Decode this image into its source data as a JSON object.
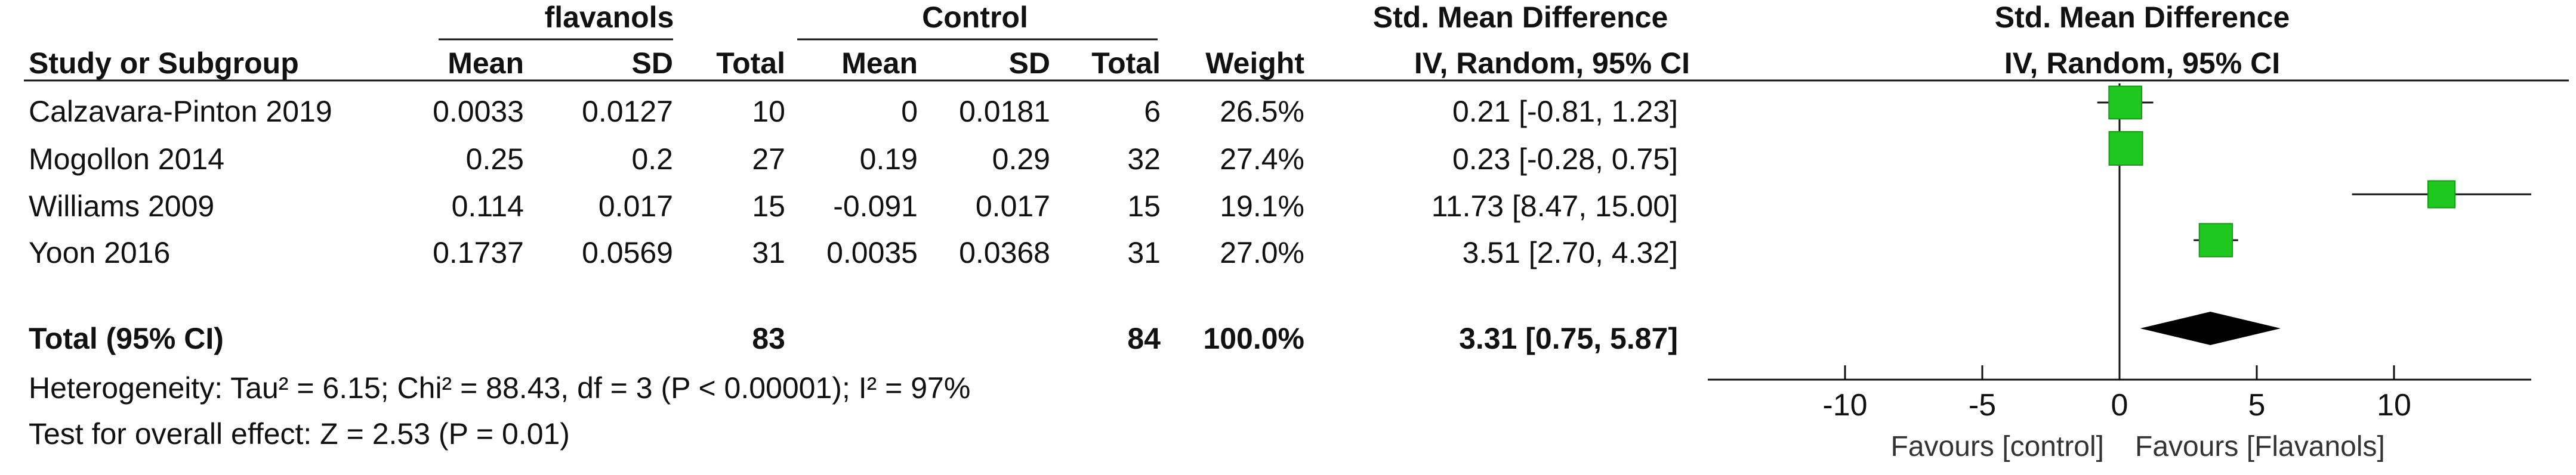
{
  "table": {
    "group1_title": "flavanols",
    "group2_title": "Control",
    "effect_title": "Std. Mean Difference",
    "effect_subtitle": "IV, Random, 95% CI",
    "plot_title": "Std. Mean Difference",
    "plot_subtitle": "IV, Random, 95% CI",
    "columns": [
      "Study or Subgroup",
      "Mean",
      "SD",
      "Total",
      "Mean",
      "SD",
      "Total",
      "Weight",
      "IV, Random, 95% CI"
    ],
    "rows": [
      {
        "study": "Calzavara-Pinton 2019",
        "m1": "0.0033",
        "sd1": "0.0127",
        "n1": "10",
        "m2": "0",
        "sd2": "0.0181",
        "n2": "6",
        "weight": "26.5%",
        "ci": "0.21 [-0.81, 1.23]"
      },
      {
        "study": "Mogollon 2014",
        "m1": "0.25",
        "sd1": "0.2",
        "n1": "27",
        "m2": "0.19",
        "sd2": "0.29",
        "n2": "32",
        "weight": "27.4%",
        "ci": "0.23 [-0.28, 0.75]"
      },
      {
        "study": "Williams 2009",
        "m1": "0.114",
        "sd1": "0.017",
        "n1": "15",
        "m2": "-0.091",
        "sd2": "0.017",
        "n2": "15",
        "weight": "19.1%",
        "ci": "11.73 [8.47, 15.00]"
      },
      {
        "study": "Yoon 2016",
        "m1": "0.1737",
        "sd1": "0.0569",
        "n1": "31",
        "m2": "0.0035",
        "sd2": "0.0368",
        "n2": "31",
        "weight": "27.0%",
        "ci": "3.51 [2.70, 4.32]"
      }
    ],
    "total": {
      "label": "Total (95% CI)",
      "n1": "83",
      "n2": "84",
      "weight": "100.0%",
      "ci": "3.31 [0.75, 5.87]"
    },
    "heterogeneity": "Heterogeneity: Tau² = 6.15; Chi² = 88.43, df = 3 (P < 0.00001); I² = 97%",
    "overall": "Test for overall effect: Z = 2.53 (P = 0.01)"
  },
  "chart_data": {
    "type": "forest",
    "title": "Std. Mean Difference",
    "subtitle": "IV, Random, 95% CI",
    "xlim": [
      -15,
      15
    ],
    "xticks": [
      -10,
      -5,
      0,
      5,
      10
    ],
    "xtick_labels": [
      "-10",
      "-5",
      "0",
      "5",
      "10"
    ],
    "favours_left": "Favours [control]",
    "favours_right": "Favours [Flavanols]",
    "studies": [
      {
        "name": "Calzavara-Pinton 2019",
        "estimate": 0.21,
        "lower": -0.81,
        "upper": 1.23,
        "weight": 26.5
      },
      {
        "name": "Mogollon 2014",
        "estimate": 0.23,
        "lower": -0.28,
        "upper": 0.75,
        "weight": 27.4
      },
      {
        "name": "Williams 2009",
        "estimate": 11.73,
        "lower": 8.47,
        "upper": 15.0,
        "weight": 19.1
      },
      {
        "name": "Yoon 2016",
        "estimate": 3.51,
        "lower": 2.7,
        "upper": 4.32,
        "weight": 27.0
      }
    ],
    "pooled": {
      "estimate": 3.31,
      "lower": 0.75,
      "upper": 5.87
    },
    "marker_color": "#1ec81e",
    "diamond_color": "#000000"
  }
}
